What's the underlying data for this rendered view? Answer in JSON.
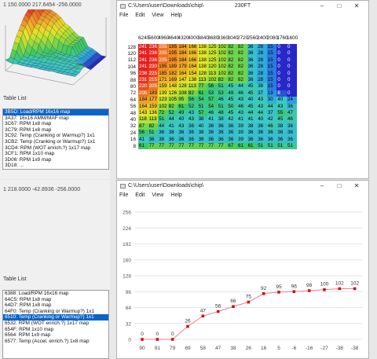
{
  "top_left": {
    "coords": "1 150.0000 217.6454 -256.0000",
    "table_list_label": "Table List",
    "items": [
      "3B5D: Load/RPM 16x16 map",
      "3A37: 16x16 AMM/MAF map",
      "3C67: RPM 1x8 map",
      "3C79: RPM 1x8 map",
      "3C92: Temp (Cranking or Warmup?) 1x1",
      "3CB2: Temp (Cranking or Warmup?) 1x1",
      "3CD4: RPM (WOT enrich.?) 1x17 map",
      "3CF1: RPM 1x10 map",
      "3D06: RPM 1x9 map",
      "3D18: ..."
    ],
    "selected_index": 0
  },
  "bottom_left": {
    "coords": "1 218.0000 -42.8936 -256.0000",
    "table_list_label": "Table List",
    "items": [
      "6388: Load/RPM 16x16 map",
      "64C5: RPM 1x8 map",
      "64D7: RPM 1x8 map",
      "64F0: Temp (Cranking or Warmup?) 1x1",
      "6510: Temp (Cranking or Warmup?) 1x1",
      "6532: RPM (WOT enrich.?) 1x17 map",
      "654F: RPM 1x10 map",
      "6564: RPM 1x9 map",
      "6577: Temp (Accel. enrich.?) 1x8 map"
    ],
    "selected_index": 4
  },
  "top_window": {
    "title": "C:\\Users\\user\\Downloads\\chip\\",
    "center_title": "230FT",
    "menu": [
      "File",
      "Edit",
      "View",
      "Help"
    ],
    "col_headers": [
      "6240",
      "5600",
      "4960",
      "4640",
      "4320",
      "4000",
      "3840",
      "3680",
      "3360",
      "3040",
      "2720",
      "2560",
      "2400",
      "2080",
      "1760",
      "1600"
    ],
    "row_headers": [
      "128",
      "120",
      "112",
      "104",
      "96",
      "88",
      "80",
      "72",
      "64",
      "56",
      "48",
      "40",
      "32",
      "24",
      "16",
      "8"
    ],
    "cells": [
      [
        241,
        236,
        205,
        195,
        184,
        166,
        138,
        125,
        102,
        82,
        82,
        36,
        28,
        15,
        0,
        0
      ],
      [
        241,
        236,
        205,
        195,
        184,
        166,
        138,
        125,
        102,
        82,
        82,
        36,
        28,
        15,
        0,
        0
      ],
      [
        241,
        236,
        205,
        195,
        184,
        166,
        138,
        125,
        102,
        82,
        82,
        36,
        28,
        15,
        0,
        0
      ],
      [
        241,
        230,
        195,
        189,
        179,
        164,
        138,
        120,
        102,
        82,
        82,
        36,
        28,
        15,
        0,
        0
      ],
      [
        236,
        225,
        185,
        182,
        164,
        154,
        128,
        113,
        102,
        82,
        82,
        36,
        28,
        15,
        0,
        0
      ],
      [
        231,
        215,
        171,
        169,
        147,
        138,
        113,
        102,
        82,
        82,
        82,
        36,
        28,
        15,
        0,
        0
      ],
      [
        220,
        205,
        159,
        148,
        128,
        113,
        77,
        56,
        51,
        45,
        44,
        45,
        38,
        15,
        0,
        0
      ],
      [
        205,
        189,
        139,
        126,
        108,
        82,
        61,
        53,
        53,
        49,
        46,
        45,
        37,
        19,
        8,
        0
      ],
      [
        184,
        177,
        123,
        105,
        95,
        56,
        54,
        57,
        46,
        45,
        43,
        40,
        43,
        30,
        40,
        24
      ],
      [
        164,
        159,
        102,
        82,
        61,
        52,
        51,
        54,
        51,
        50,
        46,
        45,
        43,
        44,
        43,
        36
      ],
      [
        143,
        136,
        72,
        52,
        49,
        43,
        57,
        46,
        48,
        45,
        43,
        44,
        44,
        37,
        55,
        47
      ],
      [
        118,
        113,
        51,
        44,
        40,
        43,
        38,
        41,
        38,
        42,
        41,
        41,
        40,
        42,
        45,
        46
      ],
      [
        87,
        82,
        44,
        41,
        43,
        36,
        40,
        36,
        36,
        36,
        39,
        38,
        36,
        46,
        38,
        36
      ],
      [
        56,
        51,
        36,
        38,
        36,
        36,
        38,
        36,
        36,
        36,
        39,
        36,
        36,
        36,
        36,
        36
      ],
      [
        41,
        36,
        38,
        36,
        36,
        36,
        38,
        36,
        36,
        36,
        39,
        36,
        36,
        36,
        36,
        36
      ],
      [
        61,
        77,
        77,
        77,
        77,
        77,
        77,
        77,
        77,
        67,
        61,
        61,
        51,
        51,
        51,
        51
      ]
    ]
  },
  "bottom_window": {
    "title": "C:\\Users\\user\\Downloads\\chip\\",
    "menu": [
      "File",
      "Edit",
      "View",
      "Help"
    ]
  },
  "chart_data": {
    "type": "line",
    "x": [
      "90",
      "91",
      "79",
      "69",
      "58",
      "47",
      "38",
      "26",
      "16",
      "5",
      "-6",
      "-16",
      "-27",
      "-38",
      "-38"
    ],
    "values": [
      0,
      0,
      0,
      26,
      47,
      56,
      66,
      75,
      92,
      95,
      96,
      98,
      100,
      102,
      102
    ],
    "yticks": [
      "256",
      "224",
      "192",
      "160",
      "128",
      "96",
      "64",
      "32",
      "0"
    ],
    "ylim": [
      0,
      256
    ],
    "grid": true,
    "line_color": "#f08080",
    "marker_color": "#d01010"
  },
  "colors": {
    "select": "#0a64c8"
  }
}
